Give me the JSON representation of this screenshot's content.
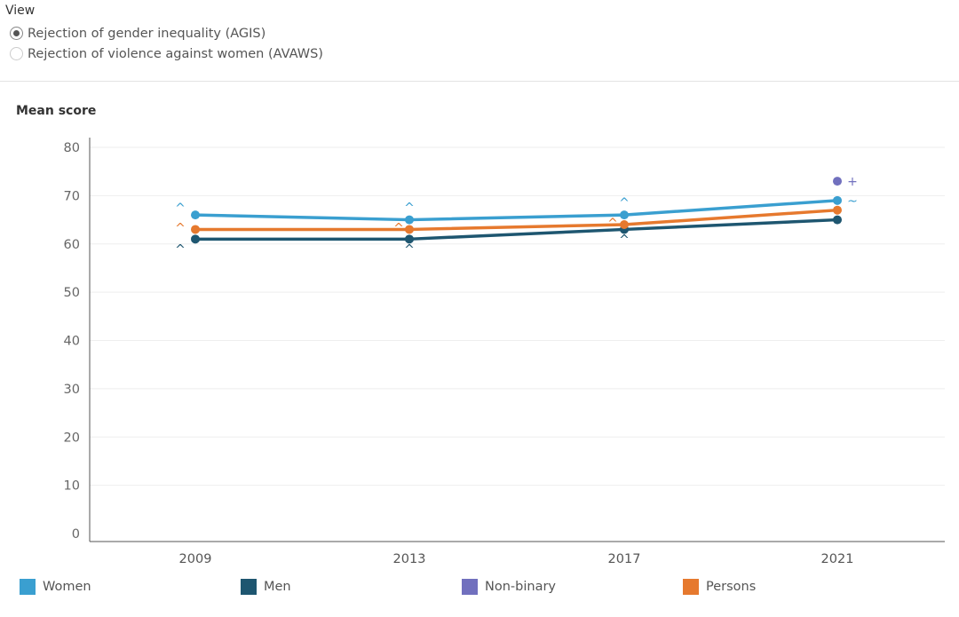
{
  "view": {
    "title": "View",
    "options": [
      {
        "label": "Rejection of gender inequality (AGIS)",
        "selected": true
      },
      {
        "label": "Rejection of violence against women (AVAWS)",
        "selected": false
      }
    ]
  },
  "colors": {
    "women": "#3a9fd0",
    "men": "#1e5670",
    "nonbinary": "#7170be",
    "persons": "#e6792e"
  },
  "chart_data": {
    "type": "line",
    "ylabel": "Mean score",
    "xlabel": "",
    "ylim": [
      0,
      80
    ],
    "yticks": [
      "0",
      "10",
      "20",
      "30",
      "40",
      "50",
      "60",
      "70",
      "80"
    ],
    "categories": [
      "2009",
      "2013",
      "2017",
      "2021"
    ],
    "grid": true,
    "legend_position": "bottom",
    "series": [
      {
        "name": "Women",
        "color": "#3a9fd0",
        "values": [
          66,
          65,
          66,
          69
        ],
        "markers": [
          "^",
          "^",
          "^",
          "~"
        ]
      },
      {
        "name": "Men",
        "color": "#1e5670",
        "values": [
          61,
          61,
          63,
          65
        ],
        "markers": [
          "^",
          "^",
          "^",
          ""
        ]
      },
      {
        "name": "Non-binary",
        "color": "#7170be",
        "values": [
          null,
          null,
          null,
          73
        ],
        "markers": [
          "",
          "",
          "",
          "+"
        ]
      },
      {
        "name": "Persons",
        "color": "#e6792e",
        "values": [
          63,
          63,
          64,
          67
        ],
        "markers": [
          "^",
          "^",
          "^",
          ""
        ]
      }
    ],
    "legend": [
      "Women",
      "Men",
      "Non-binary",
      "Persons"
    ]
  }
}
